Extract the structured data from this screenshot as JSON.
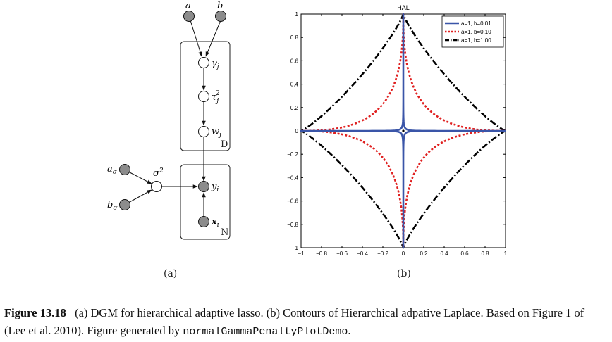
{
  "dgm": {
    "sublabel": "(a)",
    "plates": [
      {
        "id": "plate-d",
        "label": "D"
      },
      {
        "id": "plate-n",
        "label": "N"
      }
    ],
    "nodes": [
      {
        "id": "a",
        "label": "a",
        "observed": true
      },
      {
        "id": "b",
        "label": "b",
        "observed": true
      },
      {
        "id": "gamma",
        "label": "γ",
        "sub": "j",
        "observed": false
      },
      {
        "id": "tau",
        "label": "τ",
        "sub": "j",
        "sup": "2",
        "observed": false
      },
      {
        "id": "w",
        "label": "w",
        "sub": "j",
        "observed": false
      },
      {
        "id": "asig",
        "label": "a",
        "sub": "σ",
        "observed": true
      },
      {
        "id": "bsig",
        "label": "b",
        "sub": "σ",
        "observed": true
      },
      {
        "id": "sigma",
        "label": "σ",
        "sup": "2",
        "observed": false
      },
      {
        "id": "y",
        "label": "y",
        "sub": "i",
        "observed": true
      },
      {
        "id": "x",
        "label": "x",
        "sub": "i",
        "observed": true,
        "bold": true
      }
    ]
  },
  "plot": {
    "sublabel": "(b)",
    "chart_data": {
      "type": "line",
      "title": "HAL",
      "xlabel": "",
      "ylabel": "",
      "xlim": [
        -1,
        1
      ],
      "ylim": [
        -1,
        1
      ],
      "xticks": [
        "−1",
        "−0.8",
        "−0.6",
        "−0.4",
        "−0.2",
        "0",
        "0.2",
        "0.4",
        "0.6",
        "0.8",
        "1"
      ],
      "yticks": [
        "−1",
        "−0.8",
        "−0.6",
        "−0.4",
        "−0.2",
        "0",
        "0.2",
        "0.4",
        "0.6",
        "0.8",
        "1"
      ],
      "grid": false,
      "legend_position": "top-right",
      "series": [
        {
          "name": "a=1, b=0.01",
          "color": "#3a55a8",
          "dash": "solid",
          "shape_exponent": 0.18
        },
        {
          "name": "a=1, b=0.10",
          "color": "#e02020",
          "dash": "dotted",
          "shape_exponent": 0.45
        },
        {
          "name": "a=1, b=1.00",
          "color": "#000000",
          "dash": "dashdot",
          "shape_exponent": 0.85
        }
      ],
      "markers": [
        {
          "x": 0,
          "y": 0
        }
      ]
    }
  },
  "caption": {
    "label": "Figure 13.18",
    "text_before": "(a) DGM for hierarchical adaptive lasso. (b) Contours of Hierarchical adpative Laplace. Based on Figure 1 of (Lee et al. 2010). Figure generated by ",
    "code": "normalGammaPenaltyPlotDemo",
    "text_after": "."
  }
}
